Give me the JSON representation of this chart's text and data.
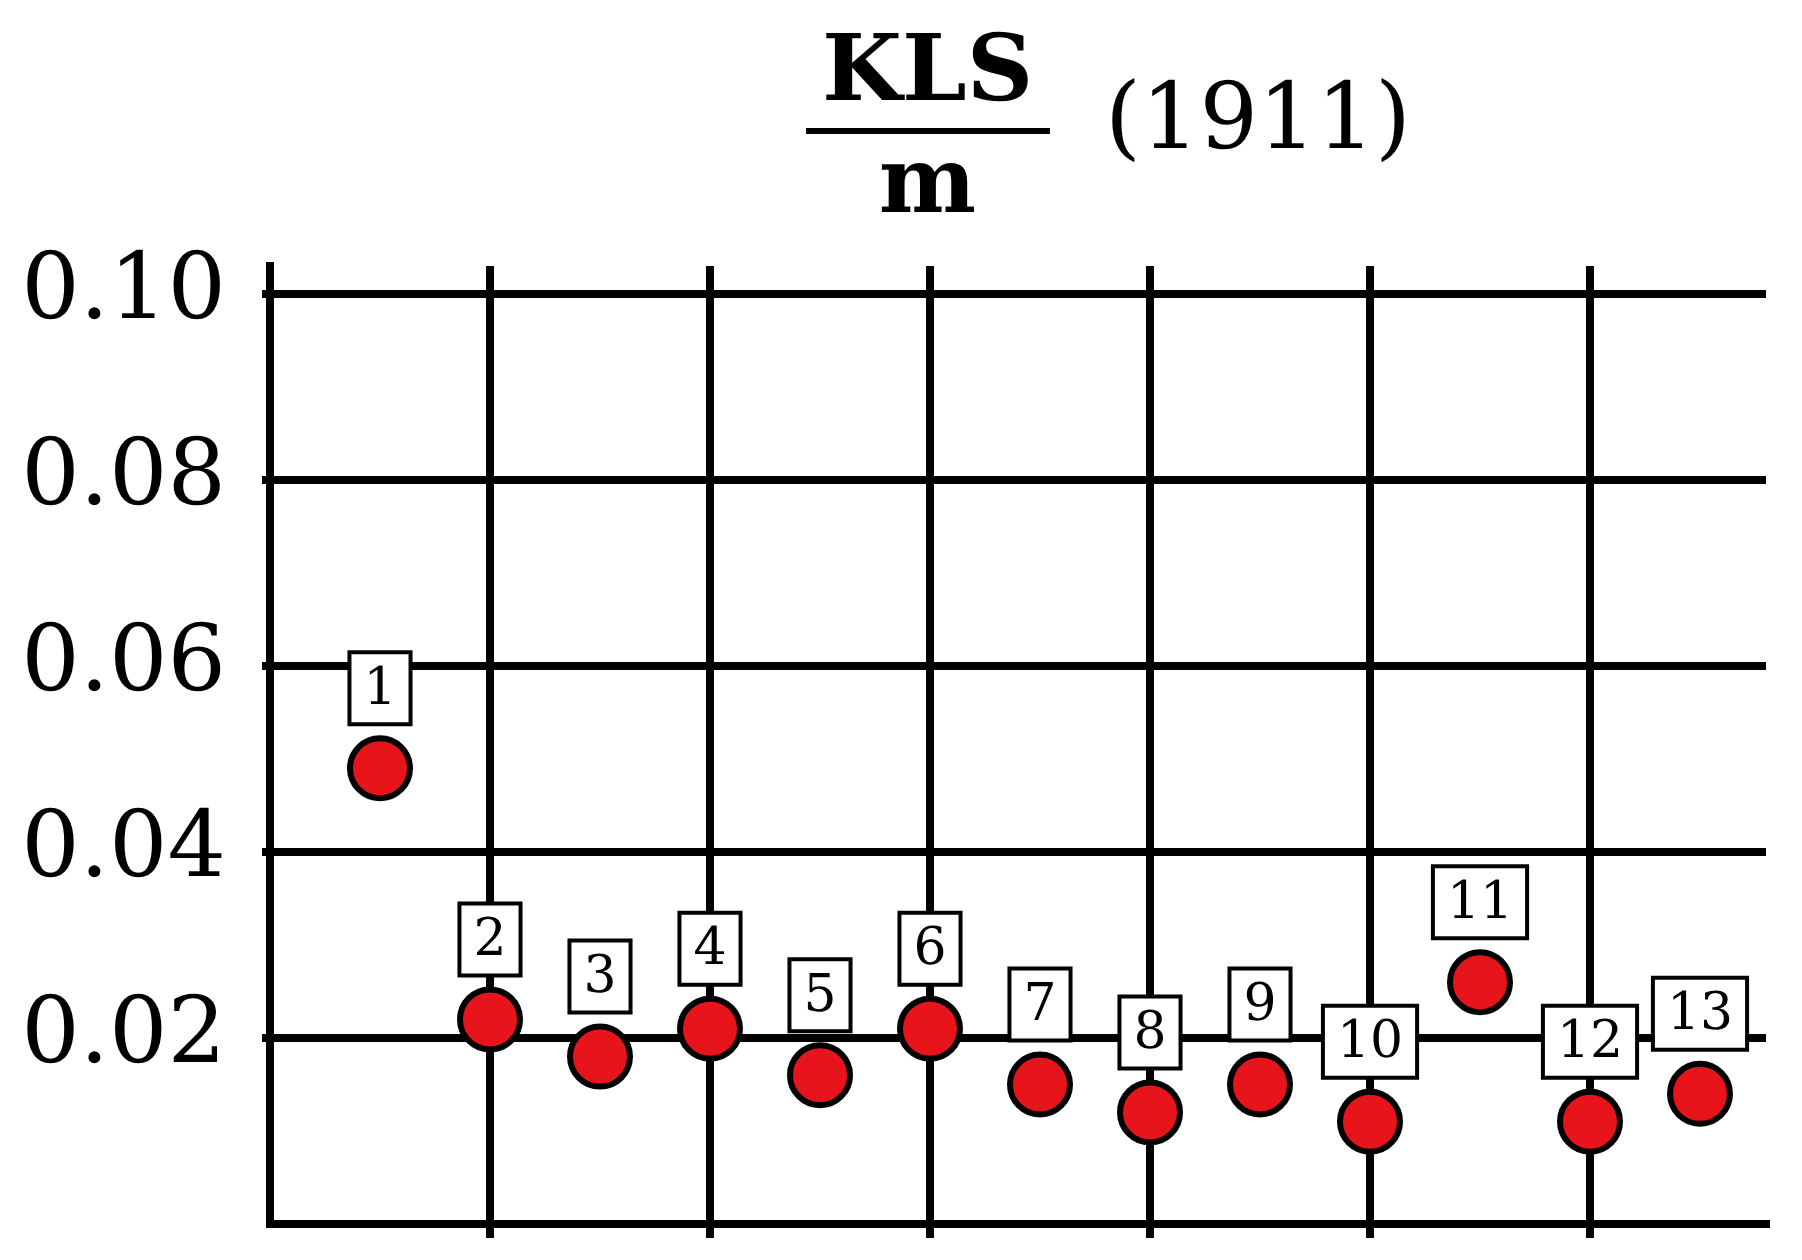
{
  "chart_data": {
    "type": "scatter",
    "title": "KLS m (1911)",
    "categories": [
      "1",
      "2",
      "3",
      "4",
      "5",
      "6",
      "7",
      "8",
      "9",
      "10",
      "11",
      "12",
      "13"
    ],
    "values": [
      0.049,
      0.022,
      0.018,
      0.021,
      0.016,
      0.021,
      0.015,
      0.012,
      0.015,
      0.011,
      0.026,
      0.011,
      0.014
    ],
    "color": "#e8141c",
    "marker": "circle",
    "ylim": [
      0,
      0.103
    ],
    "yticks": [
      0.02,
      0.04,
      0.06,
      0.08,
      {
        "value": 0.1,
        "label": "0.10"
      }
    ],
    "grid": true
  }
}
